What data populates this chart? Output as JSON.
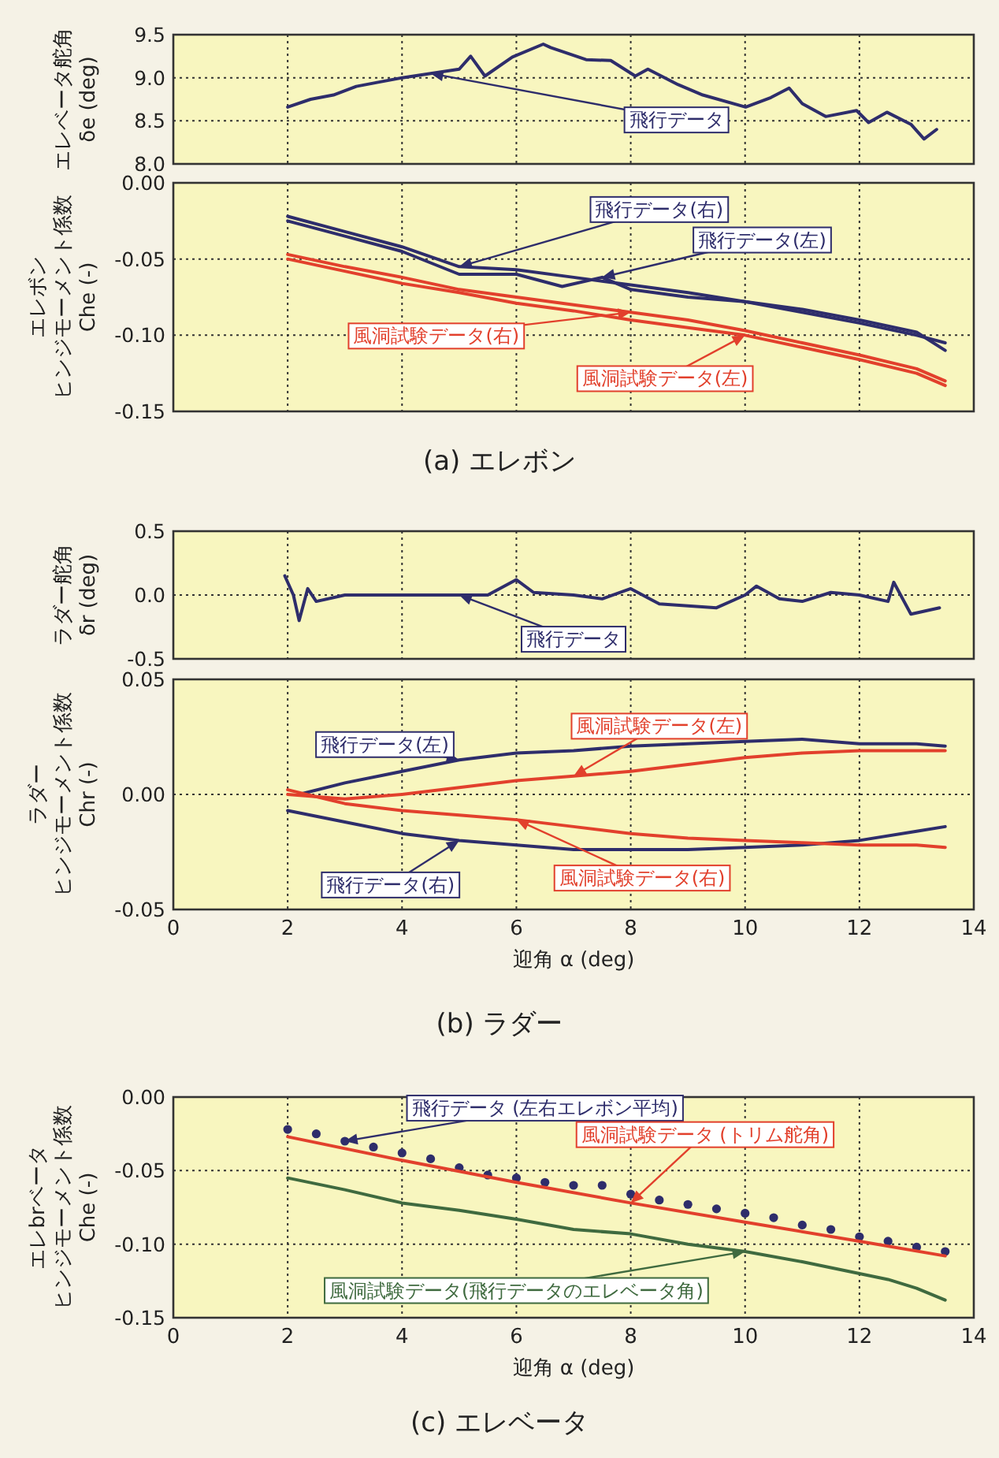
{
  "chart_data": [
    {
      "type": "line",
      "ylabel": "エレベータ舵角\nδe (deg)",
      "xlim": [
        0,
        14
      ],
      "xticks": [
        0,
        2,
        4,
        6,
        8,
        10,
        12,
        14
      ],
      "ylim": [
        8.0,
        9.5
      ],
      "yticks": [
        {
          "value": 8.0,
          "label": "8.0"
        },
        {
          "value": 8.5,
          "label": "8.5"
        },
        {
          "value": 9.0,
          "label": "9.0"
        },
        {
          "value": 9.5,
          "label": "9.5"
        }
      ],
      "grid": true,
      "tick_labels": "y",
      "series": [
        {
          "name": "飛行データ",
          "color": "#2e2d6b",
          "x": [
            2.0,
            2.4,
            2.8,
            3.2,
            3.6,
            4.0,
            4.5,
            5.0,
            5.2,
            5.45,
            5.93,
            6.47,
            6.6,
            7.22,
            7.65,
            8.08,
            8.3,
            8.83,
            9.26,
            10.01,
            10.45,
            10.77,
            11.0,
            11.41,
            11.95,
            12.16,
            12.48,
            12.9,
            13.13,
            13.35
          ],
          "values": [
            8.66,
            8.75,
            8.8,
            8.9,
            8.95,
            9.0,
            9.05,
            9.1,
            9.25,
            9.02,
            9.24,
            9.39,
            9.35,
            9.21,
            9.2,
            9.02,
            9.1,
            8.92,
            8.8,
            8.66,
            8.77,
            8.88,
            8.7,
            8.55,
            8.62,
            8.48,
            8.6,
            8.46,
            8.29,
            8.4
          ]
        }
      ]
    },
    {
      "type": "line",
      "ylabel": "エレボンヒンジモーメント係数\nChe (-)",
      "xlim": [
        0,
        14
      ],
      "xticks": [
        0,
        2,
        4,
        6,
        8,
        10,
        12,
        14
      ],
      "ylim": [
        -0.15,
        0.0
      ],
      "yticks": [
        {
          "value": -0.15,
          "label": "-0.15"
        },
        {
          "value": -0.1,
          "label": "-0.10"
        },
        {
          "value": -0.05,
          "label": "-0.05"
        },
        {
          "value": 0.0,
          "label": "0.00"
        }
      ],
      "grid": true,
      "tick_labels": "y",
      "annotations": [
        "(a) エレボン"
      ],
      "series": [
        {
          "name": "飛行データ(右)",
          "color": "#2e2d6b",
          "x": [
            2,
            3,
            4,
            5,
            6,
            7,
            8,
            9,
            10,
            11,
            12,
            13,
            13.5
          ],
          "values": [
            -0.022,
            -0.032,
            -0.042,
            -0.055,
            -0.057,
            -0.062,
            -0.067,
            -0.072,
            -0.078,
            -0.085,
            -0.092,
            -0.1,
            -0.105
          ]
        },
        {
          "name": "飛行データ(左)",
          "color": "#2e2d6b",
          "x": [
            2,
            3,
            4,
            5,
            6,
            6.8,
            7.5,
            8,
            9,
            10,
            11,
            12,
            13,
            13.5
          ],
          "values": [
            -0.025,
            -0.035,
            -0.045,
            -0.06,
            -0.06,
            -0.068,
            -0.062,
            -0.07,
            -0.075,
            -0.078,
            -0.083,
            -0.09,
            -0.098,
            -0.11
          ]
        },
        {
          "name": "風洞試験データ(右)",
          "color": "#e2402c",
          "x": [
            2,
            3,
            4,
            5,
            6,
            7,
            8,
            9,
            10,
            11,
            12,
            13,
            13.5
          ],
          "values": [
            -0.047,
            -0.055,
            -0.062,
            -0.07,
            -0.075,
            -0.08,
            -0.085,
            -0.09,
            -0.097,
            -0.105,
            -0.113,
            -0.122,
            -0.13
          ]
        },
        {
          "name": "風洞試験データ(左)",
          "color": "#e2402c",
          "x": [
            2,
            3,
            4,
            5,
            6,
            7,
            8,
            9,
            10,
            11,
            12,
            13,
            13.5
          ],
          "values": [
            -0.05,
            -0.058,
            -0.066,
            -0.072,
            -0.079,
            -0.084,
            -0.09,
            -0.095,
            -0.1,
            -0.108,
            -0.116,
            -0.125,
            -0.133
          ]
        }
      ]
    },
    {
      "type": "line",
      "ylabel": "ラダー舵角\nδr (deg)",
      "xlim": [
        0,
        14
      ],
      "xticks": [
        0,
        2,
        4,
        6,
        8,
        10,
        12,
        14
      ],
      "ylim": [
        -0.5,
        0.5
      ],
      "yticks": [
        {
          "value": -0.5,
          "label": "-0.5"
        },
        {
          "value": 0.0,
          "label": "0.0"
        },
        {
          "value": 0.5,
          "label": "0.5"
        }
      ],
      "grid": true,
      "tick_labels": "y",
      "series": [
        {
          "name": "飛行データ",
          "color": "#2e2d6b",
          "x": [
            1.95,
            2.1,
            2.2,
            2.35,
            2.5,
            3,
            4,
            5,
            5.5,
            6,
            6.3,
            7,
            7.5,
            8,
            8.5,
            9.5,
            10,
            10.2,
            10.6,
            11,
            11.5,
            12,
            12.5,
            12.6,
            12.9,
            13.4
          ],
          "values": [
            0.15,
            0.0,
            -0.2,
            0.05,
            -0.05,
            0.0,
            0.0,
            0.0,
            0.0,
            0.12,
            0.02,
            0.0,
            -0.03,
            0.05,
            -0.07,
            -0.1,
            0.0,
            0.07,
            -0.03,
            -0.05,
            0.02,
            0.0,
            -0.05,
            0.1,
            -0.15,
            -0.1
          ]
        }
      ]
    },
    {
      "type": "line",
      "ylabel": "ラダーヒンジモーメント係数\nChr (-)",
      "xlabel": "迎角 α (deg)",
      "xlim": [
        0,
        14
      ],
      "xticks": [
        0,
        2,
        4,
        6,
        8,
        10,
        12,
        14
      ],
      "ylim": [
        -0.05,
        0.05
      ],
      "yticks": [
        {
          "value": -0.05,
          "label": "-0.05"
        },
        {
          "value": 0.0,
          "label": "0.00"
        },
        {
          "value": 0.05,
          "label": "0.05"
        }
      ],
      "grid": true,
      "annotations": [
        "(b) ラダー"
      ],
      "series": [
        {
          "name": "飛行データ(左)",
          "color": "#2e2d6b",
          "x": [
            2.2,
            3,
            4,
            5,
            6,
            7,
            8,
            9,
            10,
            11,
            12,
            13,
            13.5
          ],
          "values": [
            0.0,
            0.005,
            0.01,
            0.015,
            0.018,
            0.019,
            0.021,
            0.022,
            0.023,
            0.024,
            0.022,
            0.022,
            0.021
          ]
        },
        {
          "name": "飛行データ(右)",
          "color": "#2e2d6b",
          "x": [
            2,
            3,
            4,
            5,
            6,
            7,
            8,
            9,
            10,
            11,
            12,
            13,
            13.5
          ],
          "values": [
            -0.007,
            -0.012,
            -0.017,
            -0.02,
            -0.022,
            -0.024,
            -0.024,
            -0.024,
            -0.023,
            -0.022,
            -0.02,
            -0.016,
            -0.014
          ]
        },
        {
          "name": "風洞試験データ(左)",
          "color": "#e2402c",
          "x": [
            2,
            3,
            4,
            5,
            6,
            7,
            8,
            9,
            10,
            11,
            12,
            13,
            13.5
          ],
          "values": [
            0.0,
            -0.002,
            0.0,
            0.003,
            0.006,
            0.008,
            0.01,
            0.013,
            0.016,
            0.018,
            0.019,
            0.019,
            0.019
          ]
        },
        {
          "name": "風洞試験データ(右)",
          "color": "#e2402c",
          "x": [
            2,
            3,
            4,
            5,
            6,
            7,
            8,
            9,
            10,
            11,
            12,
            13,
            13.5
          ],
          "values": [
            0.002,
            -0.004,
            -0.007,
            -0.009,
            -0.011,
            -0.014,
            -0.017,
            -0.019,
            -0.02,
            -0.021,
            -0.022,
            -0.022,
            -0.023
          ]
        }
      ]
    },
    {
      "type": "line",
      "ylabel": "エレbrベータヒンジモーメント係数\nChe (-)",
      "xlabel": "迎角 α (deg)",
      "xlim": [
        0,
        14
      ],
      "xticks": [
        0,
        2,
        4,
        6,
        8,
        10,
        12,
        14
      ],
      "ylim": [
        -0.15,
        0.0
      ],
      "yticks": [
        {
          "value": -0.15,
          "label": "-0.15"
        },
        {
          "value": -0.1,
          "label": "-0.10"
        },
        {
          "value": -0.05,
          "label": "-0.05"
        },
        {
          "value": 0.0,
          "label": "0.00"
        }
      ],
      "grid": true,
      "annotations": [
        "(c) エレベータ"
      ],
      "series": [
        {
          "type": "scatter",
          "name": "飛行データ (左右エレボン平均)",
          "color": "#2e2d6b",
          "x": [
            2,
            2.5,
            3,
            3.5,
            4,
            4.5,
            5,
            5.5,
            6,
            6.5,
            7,
            7.5,
            8,
            8.5,
            9,
            9.5,
            10,
            10.5,
            11,
            11.5,
            12,
            12.5,
            13,
            13.5
          ],
          "values": [
            -0.022,
            -0.025,
            -0.03,
            -0.034,
            -0.038,
            -0.042,
            -0.048,
            -0.053,
            -0.055,
            -0.058,
            -0.06,
            -0.06,
            -0.066,
            -0.07,
            -0.073,
            -0.076,
            -0.079,
            -0.082,
            -0.087,
            -0.09,
            -0.095,
            -0.098,
            -0.102,
            -0.105
          ]
        },
        {
          "name": "風洞試験データ (トリム舵角)",
          "color": "#e2402c",
          "x": [
            2,
            4,
            6,
            8,
            10,
            12,
            13.5
          ],
          "values": [
            -0.027,
            -0.043,
            -0.058,
            -0.072,
            -0.085,
            -0.098,
            -0.108
          ]
        },
        {
          "name": "風洞試験データ(飛行データのエレベータ角)",
          "color": "#3f6a3f",
          "x": [
            2,
            3,
            4,
            5,
            6,
            7,
            8,
            9,
            10,
            11,
            12,
            12.5,
            13,
            13.5
          ],
          "values": [
            -0.055,
            -0.063,
            -0.072,
            -0.077,
            -0.083,
            -0.09,
            -0.093,
            -0.1,
            -0.105,
            -0.112,
            -0.12,
            -0.124,
            -0.13,
            -0.138
          ]
        }
      ]
    }
  ]
}
